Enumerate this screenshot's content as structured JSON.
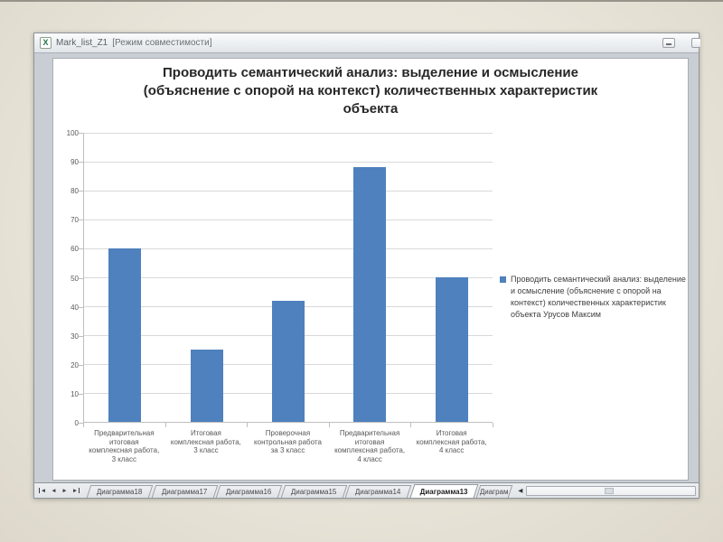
{
  "window": {
    "title": "Mark_list_Z1",
    "mode_suffix": "[Режим совместимости]",
    "file_icon_letter": "X"
  },
  "chart_data": {
    "type": "bar",
    "title": "Проводить семантический анализ: выделение и осмысление (объяснение с опорой на контекст) количественных характеристик объекта",
    "title_lines": [
      "Проводить семантический анализ: выделение и осмысление",
      "(объяснение с опорой на контекст) количественных характеристик",
      "объекта"
    ],
    "categories": [
      "Предварительная итоговая комплексная работа, 3 класс",
      "Итоговая комплексная работа, 3 класс",
      "Проверочная контрольная работа за 3 класс",
      "Предварительная итоговая комплексная работа, 4 класс",
      "Итоговая комплексная работа, 4 класс"
    ],
    "category_lines": [
      [
        "Предварительная",
        "итоговая",
        "комплексная работа,",
        "3 класс"
      ],
      [
        "Итоговая",
        "комплексная работа,",
        "3 класс"
      ],
      [
        "Проверочная",
        "контрольная работа",
        "за 3 класс"
      ],
      [
        "Предварительная",
        "итоговая",
        "комплексная работа,",
        "4 класс"
      ],
      [
        "Итоговая",
        "комплексная работа,",
        "4 класс"
      ]
    ],
    "series": [
      {
        "name": "Проводить семантический анализ: выделение и осмысление (объяснение с опорой на контекст) количественных характеристик объекта Урусов Максим",
        "values": [
          60,
          25,
          42,
          88,
          50
        ]
      }
    ],
    "values": [
      60,
      25,
      42,
      88,
      50
    ],
    "ylim": [
      0,
      100
    ],
    "ytick_step": 10,
    "xlabel": "",
    "ylabel": "",
    "grid": true,
    "legend_position": "right",
    "legend_text": "Проводить семантический анализ: выделение и осмысление (объяснение с опорой на контекст) количественных характеристик объекта Урусов Максим",
    "bar_color": "#4E81BD",
    "gridline_color": "#D9D9D9",
    "axis_color": "#BFBFBF",
    "tick_label_color": "#595959"
  },
  "tab_bar": {
    "nav_buttons": [
      {
        "name": "first-sheet",
        "glyph": "◄",
        "bar": "left"
      },
      {
        "name": "previous-sheet",
        "glyph": "◄",
        "bar": "none"
      },
      {
        "name": "next-sheet",
        "glyph": "►",
        "bar": "none"
      },
      {
        "name": "last-sheet",
        "glyph": "►",
        "bar": "right"
      }
    ],
    "tabs": [
      {
        "label": "Диаграмма18",
        "active": false,
        "cut": false
      },
      {
        "label": "Диаграмма17",
        "active": false,
        "cut": false
      },
      {
        "label": "Диаграмма16",
        "active": false,
        "cut": false
      },
      {
        "label": "Диаграмма15",
        "active": false,
        "cut": false
      },
      {
        "label": "Диаграмма14",
        "active": false,
        "cut": false
      },
      {
        "label": "Диаграмма13",
        "active": true,
        "cut": false
      },
      {
        "label": "Диаграм",
        "active": false,
        "cut": true
      }
    ],
    "splitter_glyph": "◀"
  }
}
